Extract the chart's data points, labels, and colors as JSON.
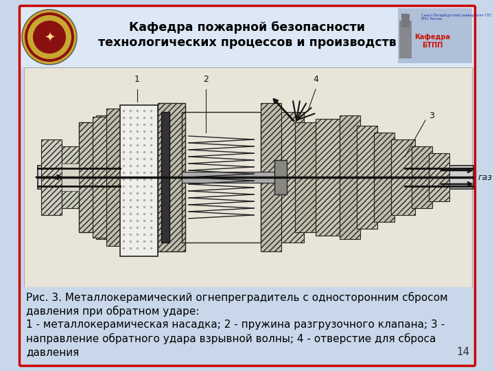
{
  "slide_bg": "#c8d8ea",
  "header_bg": "#dce6f1",
  "border_color_red": "#cc0000",
  "header_title_line1": "Кафедра пожарной безопасности",
  "header_title_line2": "технологических процессов и производств",
  "header_title_color": "#000000",
  "header_title_fontsize": 12.5,
  "caption_text_line1": "Рис. 3. Металлокерамический огнепреградитель с односторонним сбросом",
  "caption_text_line2": "давления при обратном ударе:",
  "caption_text_line3": "1 - металлокерамическая насадка; 2 - пружина разгрузочного клапана; 3 -",
  "caption_text_line4": "направление обратного удара взрывной волны; 4 - отверстие для сброса",
  "caption_text_line5": "давления",
  "caption_fontsize": 11,
  "caption_color": "#000000",
  "page_number": "14",
  "page_number_fontsize": 11,
  "diagram_bg": "#e8e4dc",
  "gas_label": "газ"
}
